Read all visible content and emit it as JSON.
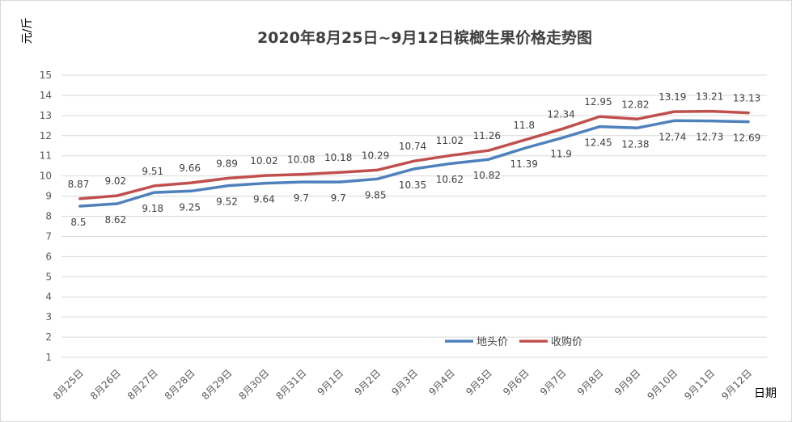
{
  "chart_data": {
    "type": "line",
    "title": "2020年8月25日~9月12日槟榔生果价格走势图",
    "ylabel": "元/斤",
    "xlabel": "日期",
    "ylim": [
      1,
      15
    ],
    "y_ticks": [
      1,
      2,
      3,
      4,
      5,
      6,
      7,
      8,
      9,
      10,
      11,
      12,
      13,
      14,
      15
    ],
    "grid": true,
    "legend_position": "bottom-right",
    "categories": [
      "8月25日",
      "8月26日",
      "8月27日",
      "8月28日",
      "8月29日",
      "8月30日",
      "8月31日",
      "9月1日",
      "9月2日",
      "9月3日",
      "9月4日",
      "9月5日",
      "9月6日",
      "9月7日",
      "9月8日",
      "9月9日",
      "9月10日",
      "9月11日",
      "9月12日"
    ],
    "series": [
      {
        "name": "地头价",
        "color": "#4f81bd",
        "values": [
          8.5,
          8.62,
          9.18,
          9.25,
          9.52,
          9.64,
          9.7,
          9.7,
          9.85,
          10.35,
          10.62,
          10.82,
          11.39,
          11.9,
          12.45,
          12.38,
          12.74,
          12.73,
          12.69
        ],
        "label_position": "below"
      },
      {
        "name": "收购价",
        "color": "#c0504d",
        "values": [
          8.87,
          9.02,
          9.51,
          9.66,
          9.89,
          10.02,
          10.08,
          10.18,
          10.29,
          10.74,
          11.02,
          11.26,
          11.8,
          12.34,
          12.95,
          12.82,
          13.19,
          13.21,
          13.13
        ],
        "label_position": "above"
      }
    ]
  }
}
